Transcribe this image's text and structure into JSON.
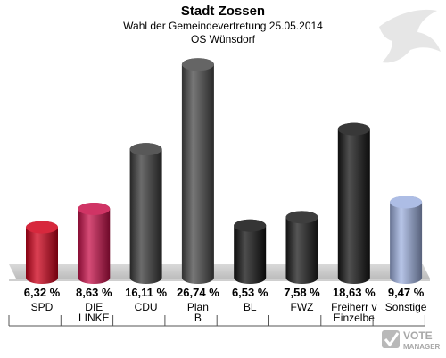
{
  "header": {
    "title": "Stadt Zossen",
    "subtitle": "Wahl der Gemeindevertretung 25.05.2014",
    "district": "OS Wünsdorf"
  },
  "watermark": {
    "line1": "VOTE",
    "line2": "MANAGER"
  },
  "chart_data": {
    "type": "bar",
    "title": "Stadt Zossen",
    "categories": [
      "SPD",
      "DIE LINKE",
      "CDU",
      "Plan B",
      "BL",
      "FWZ",
      "Freiherr v Einzelbe",
      "Sonstige"
    ],
    "category_lines": [
      [
        "SPD"
      ],
      [
        "DIE",
        "LINKE"
      ],
      [
        "CDU"
      ],
      [
        "Plan",
        "B"
      ],
      [
        "BL"
      ],
      [
        "FWZ"
      ],
      [
        "Freiherr v",
        "Einzelbe"
      ],
      [
        "Sonstige"
      ]
    ],
    "values": [
      6.32,
      8.63,
      16.11,
      26.74,
      6.53,
      7.58,
      18.63,
      9.47
    ],
    "value_labels": [
      "6,32 %",
      "8,63 %",
      "16,11 %",
      "26,74 %",
      "6,53 %",
      "7,58 %",
      "18,63 %",
      "9,47 %"
    ],
    "colors": [
      "#d0021b",
      "#c8104a",
      "#3a3a3a",
      "#4a4a4a",
      "#111111",
      "#1c1c1c",
      "#151515",
      "#9fb1e0"
    ],
    "ylim": [
      0,
      28
    ],
    "grid": false,
    "legend": "none"
  }
}
